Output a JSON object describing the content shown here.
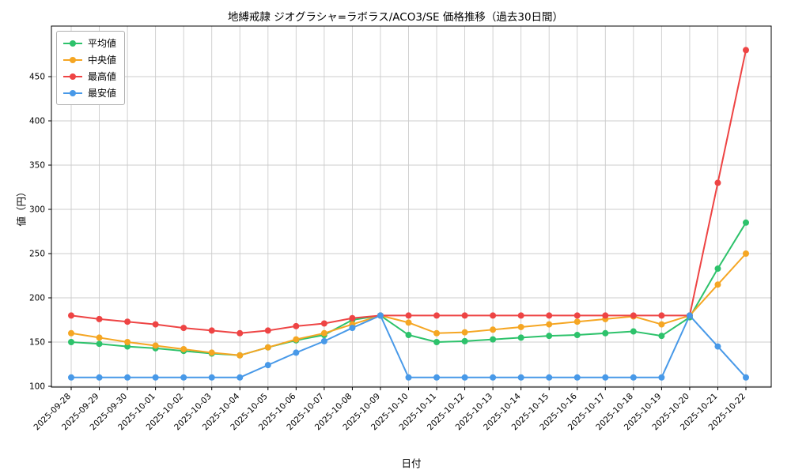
{
  "figure": {
    "title": "地縛戒隷 ジオグラシャ=ラボラス/ACO3/SE 価格推移（過去30日間）",
    "xlabel": "日付",
    "ylabel": "値（円）"
  },
  "chart_data": {
    "type": "line",
    "title": "地縛戒隷 ジオグラシャ=ラボラス/ACO3/SE 価格推移（過去30日間）",
    "xlabel": "日付",
    "ylabel": "値（円）",
    "grid": true,
    "legend_position": "upper-left",
    "marker": "circle",
    "ylim": [
      99,
      507
    ],
    "yticks": [
      100,
      150,
      200,
      250,
      300,
      350,
      400,
      450
    ],
    "categories": [
      "2025-09-28",
      "2025-09-29",
      "2025-09-30",
      "2025-10-01",
      "2025-10-02",
      "2025-10-03",
      "2025-10-04",
      "2025-10-05",
      "2025-10-06",
      "2025-10-07",
      "2025-10-08",
      "2025-10-09",
      "2025-10-10",
      "2025-10-11",
      "2025-10-12",
      "2025-10-13",
      "2025-10-14",
      "2025-10-15",
      "2025-10-16",
      "2025-10-17",
      "2025-10-18",
      "2025-10-19",
      "2025-10-20",
      "2025-10-21",
      "2025-10-22"
    ],
    "series": [
      {
        "name": "平均値",
        "color": "#2dc26b",
        "values": [
          150,
          148,
          145,
          143,
          140,
          137,
          135,
          144,
          152,
          158,
          175,
          180,
          158,
          150,
          151,
          153,
          155,
          157,
          158,
          160,
          162,
          157,
          178,
          233,
          285
        ]
      },
      {
        "name": "中央値",
        "color": "#f5a623",
        "values": [
          160,
          155,
          150,
          146,
          142,
          138,
          135,
          144,
          153,
          160,
          170,
          180,
          172,
          160,
          161,
          164,
          167,
          170,
          173,
          176,
          179,
          170,
          180,
          215,
          250
        ]
      },
      {
        "name": "最高値",
        "color": "#ee4444",
        "values": [
          180,
          176,
          173,
          170,
          166,
          163,
          160,
          163,
          168,
          171,
          177,
          180,
          180,
          180,
          180,
          180,
          180,
          180,
          180,
          180,
          180,
          180,
          180,
          330,
          480
        ]
      },
      {
        "name": "最安値",
        "color": "#4899e8",
        "values": [
          110,
          110,
          110,
          110,
          110,
          110,
          110,
          124,
          138,
          151,
          166,
          180,
          110,
          110,
          110,
          110,
          110,
          110,
          110,
          110,
          110,
          110,
          180,
          145,
          110
        ]
      }
    ]
  }
}
